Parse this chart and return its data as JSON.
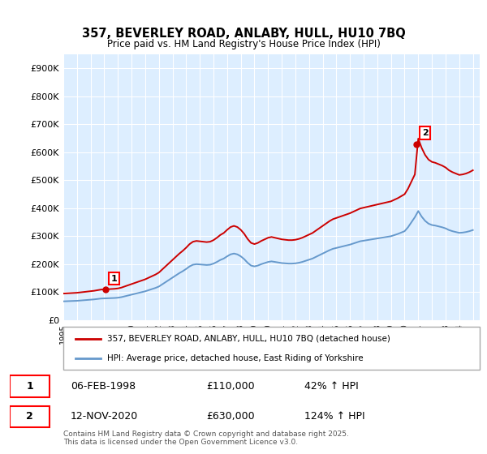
{
  "title": "357, BEVERLEY ROAD, ANLABY, HULL, HU10 7BQ",
  "subtitle": "Price paid vs. HM Land Registry's House Price Index (HPI)",
  "yticks": [
    0,
    100000,
    200000,
    300000,
    400000,
    500000,
    600000,
    700000,
    800000,
    900000
  ],
  "ytick_labels": [
    "£0",
    "£100K",
    "£200K",
    "£300K",
    "£400K",
    "£500K",
    "£600K",
    "£700K",
    "£800K",
    "£900K"
  ],
  "ylim": [
    0,
    950000
  ],
  "xlim_start": 1995,
  "xlim_end": 2025.5,
  "property_color": "#cc0000",
  "hpi_color": "#6699cc",
  "background_color": "#ddeeff",
  "grid_color": "#ffffff",
  "annotation1_date": "06-FEB-1998",
  "annotation1_price": "£110,000",
  "annotation1_hpi": "42% ↑ HPI",
  "annotation2_date": "12-NOV-2020",
  "annotation2_price": "£630,000",
  "annotation2_hpi": "124% ↑ HPI",
  "legend_property": "357, BEVERLEY ROAD, ANLABY, HULL, HU10 7BQ (detached house)",
  "legend_hpi": "HPI: Average price, detached house, East Riding of Yorkshire",
  "footer": "Contains HM Land Registry data © Crown copyright and database right 2025.\nThis data is licensed under the Open Government Licence v3.0.",
  "hpi_years": [
    1995.0,
    1995.25,
    1995.5,
    1995.75,
    1996.0,
    1996.25,
    1996.5,
    1996.75,
    1997.0,
    1997.25,
    1997.5,
    1997.75,
    1998.0,
    1998.25,
    1998.5,
    1998.75,
    1999.0,
    1999.25,
    1999.5,
    1999.75,
    2000.0,
    2000.25,
    2000.5,
    2000.75,
    2001.0,
    2001.25,
    2001.5,
    2001.75,
    2002.0,
    2002.25,
    2002.5,
    2002.75,
    2003.0,
    2003.25,
    2003.5,
    2003.75,
    2004.0,
    2004.25,
    2004.5,
    2004.75,
    2005.0,
    2005.25,
    2005.5,
    2005.75,
    2006.0,
    2006.25,
    2006.5,
    2006.75,
    2007.0,
    2007.25,
    2007.5,
    2007.75,
    2008.0,
    2008.25,
    2008.5,
    2008.75,
    2009.0,
    2009.25,
    2009.5,
    2009.75,
    2010.0,
    2010.25,
    2010.5,
    2010.75,
    2011.0,
    2011.25,
    2011.5,
    2011.75,
    2012.0,
    2012.25,
    2012.5,
    2012.75,
    2013.0,
    2013.25,
    2013.5,
    2013.75,
    2014.0,
    2014.25,
    2014.5,
    2014.75,
    2015.0,
    2015.25,
    2015.5,
    2015.75,
    2016.0,
    2016.25,
    2016.5,
    2016.75,
    2017.0,
    2017.25,
    2017.5,
    2017.75,
    2018.0,
    2018.25,
    2018.5,
    2018.75,
    2019.0,
    2019.25,
    2019.5,
    2019.75,
    2020.0,
    2020.25,
    2020.5,
    2020.75,
    2021.0,
    2021.25,
    2021.5,
    2021.75,
    2022.0,
    2022.25,
    2022.5,
    2022.75,
    2023.0,
    2023.25,
    2023.5,
    2023.75,
    2024.0,
    2024.25,
    2024.5,
    2024.75,
    2025.0
  ],
  "hpi_values": [
    67000,
    67500,
    68000,
    68500,
    69000,
    70000,
    71000,
    72000,
    73000,
    74000,
    75500,
    77000,
    77500,
    78000,
    78500,
    79000,
    80000,
    82000,
    85000,
    88000,
    91000,
    94000,
    97000,
    100000,
    103000,
    107000,
    111000,
    115000,
    120000,
    128000,
    136000,
    144000,
    152000,
    160000,
    168000,
    175000,
    183000,
    192000,
    198000,
    200000,
    199000,
    198000,
    197000,
    198000,
    202000,
    208000,
    215000,
    220000,
    228000,
    235000,
    238000,
    235000,
    228000,
    218000,
    205000,
    195000,
    192000,
    195000,
    200000,
    204000,
    208000,
    210000,
    208000,
    206000,
    204000,
    203000,
    202000,
    202000,
    203000,
    205000,
    208000,
    212000,
    216000,
    220000,
    226000,
    232000,
    238000,
    244000,
    250000,
    255000,
    258000,
    261000,
    264000,
    267000,
    270000,
    274000,
    278000,
    282000,
    284000,
    286000,
    288000,
    290000,
    292000,
    294000,
    296000,
    298000,
    300000,
    304000,
    308000,
    313000,
    318000,
    332000,
    350000,
    368000,
    390000,
    370000,
    355000,
    345000,
    340000,
    338000,
    335000,
    332000,
    328000,
    322000,
    318000,
    315000,
    312000,
    313000,
    315000,
    318000,
    322000
  ],
  "sale1_year": 1998.1,
  "sale1_val": 110000,
  "sale2_year": 2020.87,
  "sale2_val": 630000
}
